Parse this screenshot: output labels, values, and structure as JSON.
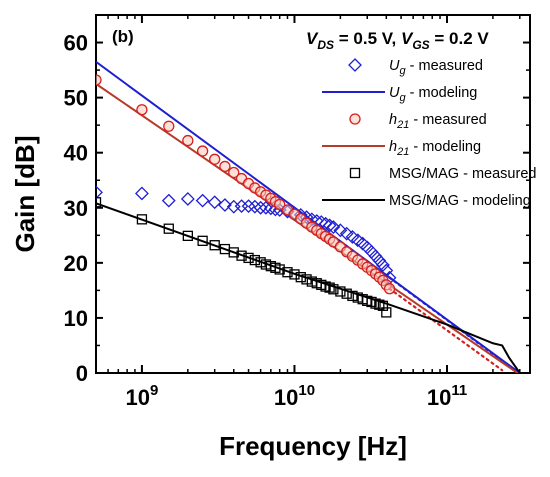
{
  "chart_data": {
    "type": "scatter",
    "panel_label": "(b)",
    "condition": {
      "vds_label": "V",
      "vds_sub": "DS",
      "vds_value": " = 0.5 V, ",
      "vgs_label": "V",
      "vgs_sub": "GS",
      "vgs_value": " = 0.2 V"
    },
    "xlabel": "Frequency [Hz]",
    "ylabel": "Gain [dB]",
    "x_scale": "log",
    "xlim": [
      500000000,
      350000000000
    ],
    "ylim": [
      0,
      65
    ],
    "x_ticks": [
      {
        "value": 1000000000,
        "base": "10",
        "exp": "9"
      },
      {
        "value": 10000000000,
        "base": "10",
        "exp": "10"
      },
      {
        "value": 100000000000,
        "base": "10",
        "exp": "11"
      }
    ],
    "y_ticks": [
      0,
      10,
      20,
      30,
      40,
      50,
      60
    ],
    "legend_position": "top-right",
    "series": [
      {
        "name": "U_g - measured",
        "sym": "U",
        "sub": "g",
        "rest": " - measured",
        "kind": "markers",
        "marker": "diamond",
        "color": "#1f1fd0",
        "points": [
          [
            500000000,
            32.8
          ],
          [
            1000000000,
            32.6
          ],
          [
            1500000000,
            31.3
          ],
          [
            2000000000,
            31.6
          ],
          [
            2500000000,
            31.3
          ],
          [
            3000000000,
            31.0
          ],
          [
            3500000000,
            30.5
          ],
          [
            4000000000,
            30.2
          ],
          [
            4500000000,
            30.3
          ],
          [
            5000000000,
            30.3
          ],
          [
            5500000000,
            30.2
          ],
          [
            6000000000,
            30.0
          ],
          [
            6500000000,
            30.0
          ],
          [
            7000000000,
            29.9
          ],
          [
            7500000000,
            29.7
          ],
          [
            8000000000,
            29.6
          ],
          [
            9000000000,
            29.3
          ],
          [
            10000000000,
            29.0
          ],
          [
            11000000000,
            28.7
          ],
          [
            12000000000,
            28.3
          ],
          [
            13000000000,
            27.9
          ],
          [
            14000000000,
            27.6
          ],
          [
            15000000000,
            27.4
          ],
          [
            16000000000,
            27.1
          ],
          [
            17000000000,
            26.8
          ],
          [
            18000000000,
            26.5
          ],
          [
            20000000000,
            25.9
          ],
          [
            22000000000,
            25.3
          ],
          [
            24000000000,
            24.7
          ],
          [
            26000000000,
            24.1
          ],
          [
            28000000000,
            23.5
          ],
          [
            30000000000,
            22.8
          ],
          [
            32000000000,
            22.0
          ],
          [
            34000000000,
            21.2
          ],
          [
            36000000000,
            20.4
          ],
          [
            38000000000,
            19.6
          ],
          [
            40000000000,
            18.6
          ],
          [
            42000000000,
            17.3
          ]
        ]
      },
      {
        "name": "U_g - modeling",
        "sym": "U",
        "sub": "g",
        "rest": " - modeling",
        "kind": "line",
        "color": "#1f1fd0",
        "points": [
          [
            500000000,
            56.5
          ],
          [
            300000000000,
            0
          ]
        ]
      },
      {
        "name": "U_g - modeling (extrapolated)",
        "kind": "dotted",
        "color": "#1f1fd0",
        "points": [
          [
            42000000000,
            17.3
          ],
          [
            250000000000,
            1.5
          ]
        ]
      },
      {
        "name": "h_21 - measured",
        "sym": "h",
        "sub": "21",
        "rest": " - measured",
        "kind": "markers",
        "marker": "circle",
        "color": "#d42020",
        "points": [
          [
            500000000,
            53.2
          ],
          [
            1000000000,
            47.8
          ],
          [
            1500000000,
            44.8
          ],
          [
            2000000000,
            42.2
          ],
          [
            2500000000,
            40.3
          ],
          [
            3000000000,
            38.8
          ],
          [
            3500000000,
            37.5
          ],
          [
            4000000000,
            36.4
          ],
          [
            4500000000,
            35.3
          ],
          [
            5000000000,
            34.4
          ],
          [
            5500000000,
            33.6
          ],
          [
            6000000000,
            32.9
          ],
          [
            6500000000,
            32.3
          ],
          [
            7000000000,
            31.7
          ],
          [
            7500000000,
            31.1
          ],
          [
            8000000000,
            30.6
          ],
          [
            9000000000,
            29.6
          ],
          [
            10000000000,
            28.8
          ],
          [
            11000000000,
            28.0
          ],
          [
            12000000000,
            27.2
          ],
          [
            13000000000,
            26.5
          ],
          [
            14000000000,
            25.9
          ],
          [
            15000000000,
            25.3
          ],
          [
            16000000000,
            24.8
          ],
          [
            17000000000,
            24.3
          ],
          [
            18000000000,
            23.8
          ],
          [
            20000000000,
            22.9
          ],
          [
            22000000000,
            22.0
          ],
          [
            24000000000,
            21.2
          ],
          [
            26000000000,
            20.5
          ],
          [
            28000000000,
            19.8
          ],
          [
            30000000000,
            19.2
          ],
          [
            32000000000,
            18.6
          ],
          [
            34000000000,
            18.0
          ],
          [
            36000000000,
            17.4
          ],
          [
            38000000000,
            16.8
          ],
          [
            40000000000,
            16.0
          ],
          [
            42000000000,
            15.3
          ]
        ]
      },
      {
        "name": "h_21 - modeling",
        "sym": "h",
        "sub": "21",
        "rest": " - modeling",
        "kind": "line",
        "color": "#b83a28",
        "points": [
          [
            500000000,
            52.5
          ],
          [
            290000000000,
            0
          ]
        ]
      },
      {
        "name": "h_21 - modeling (extrapolated)",
        "kind": "dotted",
        "color": "#d42020",
        "points": [
          [
            42000000000,
            15.3
          ],
          [
            230000000000,
            0.5
          ]
        ]
      },
      {
        "name": "MSG/MAG - measured",
        "rest": "MSG/MAG - measured",
        "kind": "markers",
        "marker": "square",
        "color": "#000000",
        "points": [
          [
            500000000,
            31.0
          ],
          [
            1000000000,
            27.9
          ],
          [
            1500000000,
            26.2
          ],
          [
            2000000000,
            24.9
          ],
          [
            2500000000,
            24.0
          ],
          [
            3000000000,
            23.2
          ],
          [
            3500000000,
            22.5
          ],
          [
            4000000000,
            21.9
          ],
          [
            4500000000,
            21.3
          ],
          [
            5000000000,
            20.9
          ],
          [
            5500000000,
            20.5
          ],
          [
            6000000000,
            20.1
          ],
          [
            6500000000,
            19.7
          ],
          [
            7000000000,
            19.4
          ],
          [
            7500000000,
            19.1
          ],
          [
            8000000000,
            18.8
          ],
          [
            9000000000,
            18.3
          ],
          [
            10000000000,
            17.9
          ],
          [
            11000000000,
            17.4
          ],
          [
            12000000000,
            17.0
          ],
          [
            13000000000,
            16.6
          ],
          [
            14000000000,
            16.3
          ],
          [
            15000000000,
            16.0
          ],
          [
            16000000000,
            15.7
          ],
          [
            17000000000,
            15.5
          ],
          [
            18000000000,
            15.2
          ],
          [
            20000000000,
            14.8
          ],
          [
            22000000000,
            14.4
          ],
          [
            24000000000,
            14.0
          ],
          [
            26000000000,
            13.7
          ],
          [
            28000000000,
            13.4
          ],
          [
            30000000000,
            13.1
          ],
          [
            32000000000,
            12.9
          ],
          [
            34000000000,
            12.6
          ],
          [
            36000000000,
            12.4
          ],
          [
            38000000000,
            12.2
          ],
          [
            40000000000,
            11.0
          ]
        ]
      },
      {
        "name": "MSG/MAG - modeling",
        "rest": "MSG/MAG - modeling",
        "kind": "line",
        "color": "#000000",
        "points": [
          [
            500000000,
            30.8
          ],
          [
            10000000000,
            18.0
          ],
          [
            40000000000,
            12.6
          ],
          [
            100000000000,
            8.8
          ],
          [
            200000000000,
            5.4
          ],
          [
            230000000000,
            5.0
          ],
          [
            255000000000,
            2.8
          ],
          [
            300000000000,
            0
          ]
        ]
      }
    ]
  }
}
